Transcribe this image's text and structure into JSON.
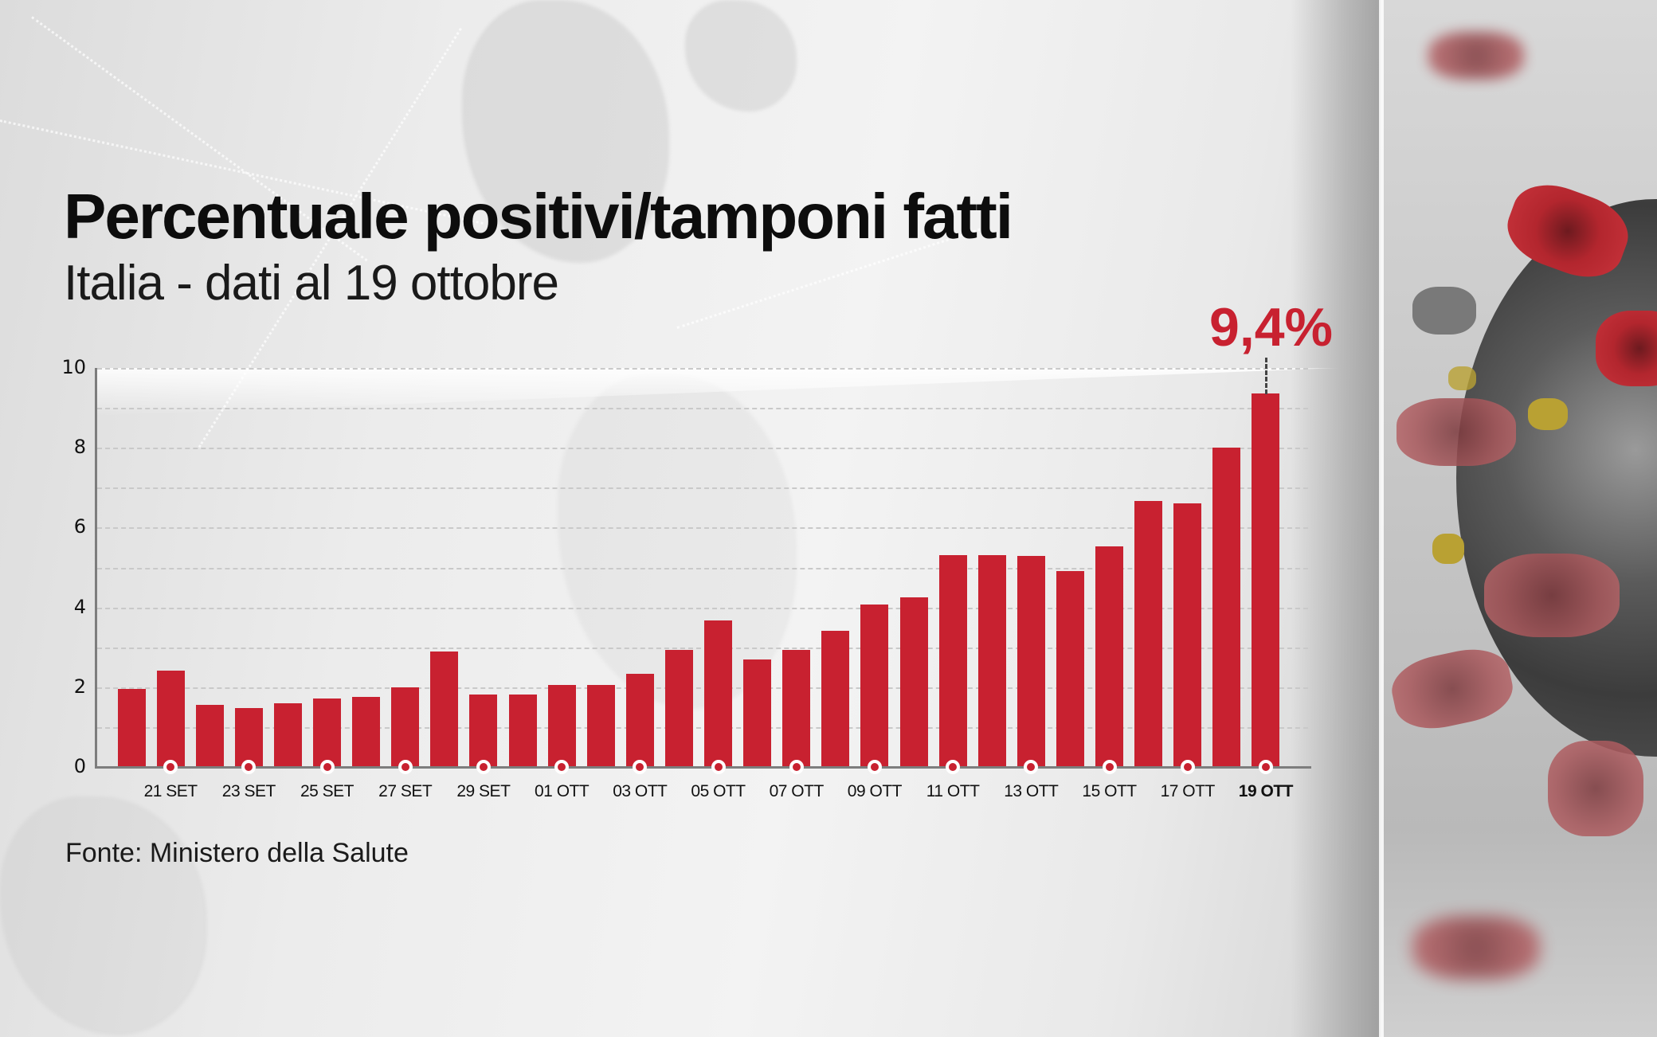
{
  "header": {
    "title": "Percentuale positivi/tamponi fatti",
    "subtitle": "Italia - dati al 19 ottobre"
  },
  "callout": {
    "value_label": "9,4%",
    "color": "#c82130"
  },
  "footer": {
    "source": "Fonte: Ministero della Salute"
  },
  "colors": {
    "bar": "#c82130",
    "axis": "#7d7d7d",
    "grid": "#c9c9c9",
    "text": "#111111"
  },
  "chart_data": {
    "type": "bar",
    "title": "Percentuale positivi/tamponi fatti",
    "subtitle": "Italia - dati al 19 ottobre",
    "xlabel": "",
    "ylabel": "",
    "ylim": [
      0,
      10
    ],
    "yticks": [
      0,
      2,
      4,
      6,
      8,
      10
    ],
    "grid": true,
    "grid_step": 1,
    "legend": null,
    "categories": [
      "20 SET",
      "21 SET",
      "22 SET",
      "23 SET",
      "24 SET",
      "25 SET",
      "26 SET",
      "27 SET",
      "28 SET",
      "29 SET",
      "30 SET",
      "01 OTT",
      "02 OTT",
      "03 OTT",
      "04 OTT",
      "05 OTT",
      "06 OTT",
      "07 OTT",
      "08 OTT",
      "09 OTT",
      "10 OTT",
      "11 OTT",
      "12 OTT",
      "13 OTT",
      "14 OTT",
      "15 OTT",
      "16 OTT",
      "17 OTT",
      "18 OTT",
      "19 OTT"
    ],
    "values": [
      1.95,
      2.42,
      1.55,
      1.47,
      1.6,
      1.71,
      1.75,
      2.0,
      2.89,
      1.82,
      1.82,
      2.05,
      2.05,
      2.34,
      2.94,
      3.68,
      2.7,
      2.94,
      3.41,
      4.07,
      4.26,
      5.3,
      5.3,
      5.29,
      4.91,
      5.52,
      6.67,
      6.61,
      8.01,
      9.36
    ],
    "visible_tick_labels": [
      "21 SET",
      "23 SET",
      "25 SET",
      "27 SET",
      "29 SET",
      "01 OTT",
      "03 OTT",
      "05 OTT",
      "07 OTT",
      "09 OTT",
      "11 OTT",
      "13 OTT",
      "15 OTT",
      "17 OTT",
      "19 OTT"
    ],
    "annotations": [
      {
        "category": "19 OTT",
        "text": "9,4%"
      }
    ],
    "source": "Fonte: Ministero della Salute"
  }
}
